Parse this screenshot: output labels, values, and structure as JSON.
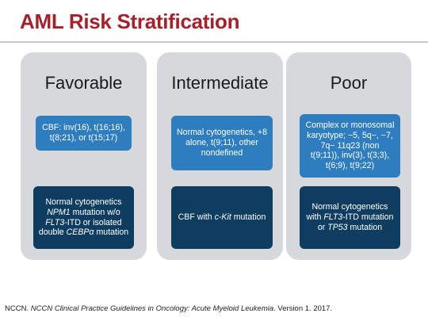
{
  "title": "AML Risk Stratification",
  "columns": [
    {
      "header": "Favorable",
      "box1": [
        "CBF: inv(16), t(16;16),",
        "t(8;21), or t(15;17)"
      ],
      "box2": {
        "l1": "Normal cytogenetics",
        "l2_a": "NPM1",
        "l2_b": " mutation w/o",
        "l3_a": "FLT3",
        "l3_b": "-ITD or isolated",
        "l4_a": "double ",
        "l4_b": "CEBPα",
        "l4_c": " mutation"
      }
    },
    {
      "header": "Intermediate",
      "box1": [
        "Normal cytogenetics, +8",
        "alone, t(9;11), other",
        "nondefined"
      ],
      "box2": {
        "a": "CBF with ",
        "b": "c-Kit",
        "c": " mutation"
      }
    },
    {
      "header": "Poor",
      "box1": [
        "Complex or monosomal",
        "karyotype; −5, 5q−, −7,",
        "7q− 11q23 (non",
        "t(9;11)), inv(3), t(3;3),",
        "t(6;9), t(9;22)"
      ],
      "box2": {
        "l1": "Normal cytogenetics",
        "l2_a": "with ",
        "l2_b": "FLT3",
        "l2_c": "-ITD mutation",
        "l3_a": "or ",
        "l3_b": "TP53",
        "l3_c": " mutation"
      }
    }
  ],
  "citation": {
    "prefix": "NCCN. ",
    "italic": "NCCN Clinical Practice Guidelines in Oncology: Acute Myeloid Leukemia",
    "suffix": ". Version 1. 2017."
  },
  "colors": {
    "title": "#a5202b",
    "column_bg": "#d6d8dc",
    "box_light": "#2e7dbf",
    "box_dark": "#0f3d5f"
  }
}
